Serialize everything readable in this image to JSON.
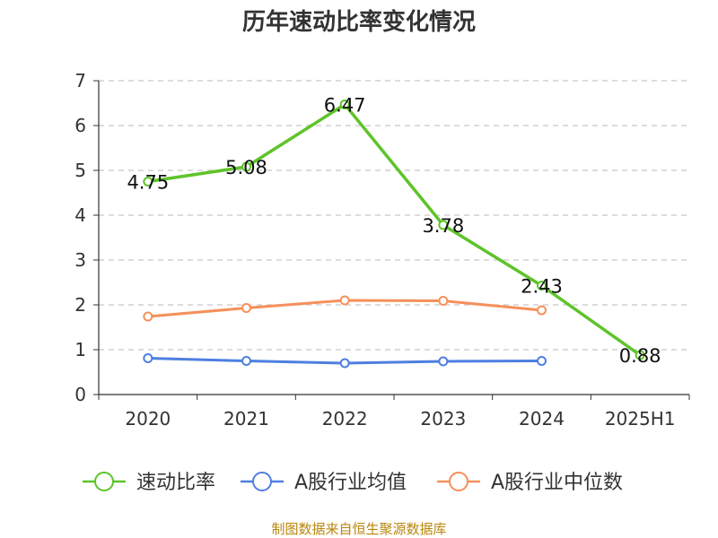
{
  "chart_data": {
    "type": "line",
    "title": "历年速动比率变化情况",
    "categories": [
      "2020",
      "2021",
      "2022",
      "2023",
      "2024",
      "2025H1"
    ],
    "ylim": [
      0,
      7
    ],
    "yticks": [
      "0",
      "1",
      "2",
      "3",
      "4",
      "5",
      "6",
      "7"
    ],
    "grid": true,
    "legend_position": "bottom",
    "series": [
      {
        "name": "速动比率",
        "color": "#5ec42a",
        "values": [
          4.75,
          5.08,
          6.47,
          3.78,
          2.43,
          0.88
        ],
        "labels": [
          "4.75",
          "5.08",
          "6.47",
          "3.78",
          "2.43",
          "0.88"
        ]
      },
      {
        "name": "A股行业均值",
        "color": "#4e7fe0",
        "values": [
          0.81,
          0.75,
          0.7,
          0.74,
          0.75,
          null
        ]
      },
      {
        "name": "A股行业中位数",
        "color": "#f5905a",
        "values": [
          1.74,
          1.93,
          2.1,
          2.09,
          1.88,
          null
        ]
      }
    ],
    "source": "制图数据来自恒生聚源数据库"
  }
}
